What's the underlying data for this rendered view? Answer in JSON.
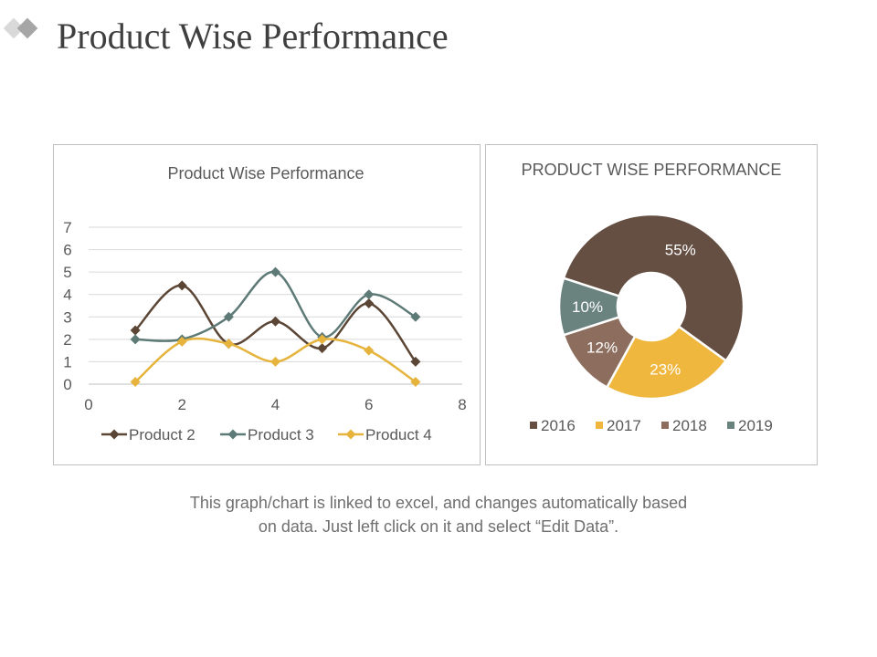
{
  "page": {
    "title": "Product Wise Performance",
    "caption_line1": "This graph/chart is linked to excel, and changes automatically based",
    "caption_line2": "on data. Just left click on it and select “Edit Data”."
  },
  "colors": {
    "logo_light": "#d9d9d9",
    "logo_dark": "#a6a6a6",
    "gridline": "#d9d9d9",
    "axis_text": "#595959"
  },
  "chart_data": [
    {
      "type": "line",
      "title": "Product Wise Performance",
      "xlabel": "",
      "ylabel": "",
      "xlim": [
        0,
        8
      ],
      "ylim": [
        0,
        7
      ],
      "x_ticks": [
        "0",
        "2",
        "4",
        "6",
        "8"
      ],
      "y_ticks": [
        "0",
        "1",
        "2",
        "3",
        "4",
        "5",
        "6",
        "7"
      ],
      "grid": true,
      "legend_position": "bottom",
      "series": [
        {
          "name": "Product 2",
          "color": "#5b4535",
          "marker": "diamond",
          "points": [
            [
              1,
              2.4
            ],
            [
              2,
              4.4
            ],
            [
              3,
              1.8
            ],
            [
              4,
              2.8
            ],
            [
              5,
              1.6
            ],
            [
              6,
              3.6
            ],
            [
              7,
              1.0
            ]
          ]
        },
        {
          "name": "Product 3",
          "color": "#5e7a77",
          "marker": "diamond",
          "points": [
            [
              1,
              2.0
            ],
            [
              2,
              2.0
            ],
            [
              3,
              3.0
            ],
            [
              4,
              5.0
            ],
            [
              5,
              2.1
            ],
            [
              6,
              4.0
            ],
            [
              7,
              3.0
            ]
          ]
        },
        {
          "name": "Product 4",
          "color": "#e6b43c",
          "marker": "diamond",
          "points": [
            [
              1,
              0.1
            ],
            [
              2,
              1.9
            ],
            [
              3,
              1.8
            ],
            [
              4,
              1.0
            ],
            [
              5,
              2.0
            ],
            [
              6,
              1.5
            ],
            [
              7,
              0.1
            ]
          ]
        }
      ]
    },
    {
      "type": "pie",
      "donut": true,
      "title": "PRODUCT WISE PERFORMANCE",
      "legend_position": "bottom",
      "slices": [
        {
          "label": "2016",
          "value": 55,
          "display": "55%",
          "color": "#654e42"
        },
        {
          "label": "2017",
          "value": 23,
          "display": "23%",
          "color": "#f0b73f"
        },
        {
          "label": "2018",
          "value": 12,
          "display": "12%",
          "color": "#8d6e5e"
        },
        {
          "label": "2019",
          "value": 10,
          "display": "10%",
          "color": "#6b837f"
        }
      ]
    }
  ]
}
